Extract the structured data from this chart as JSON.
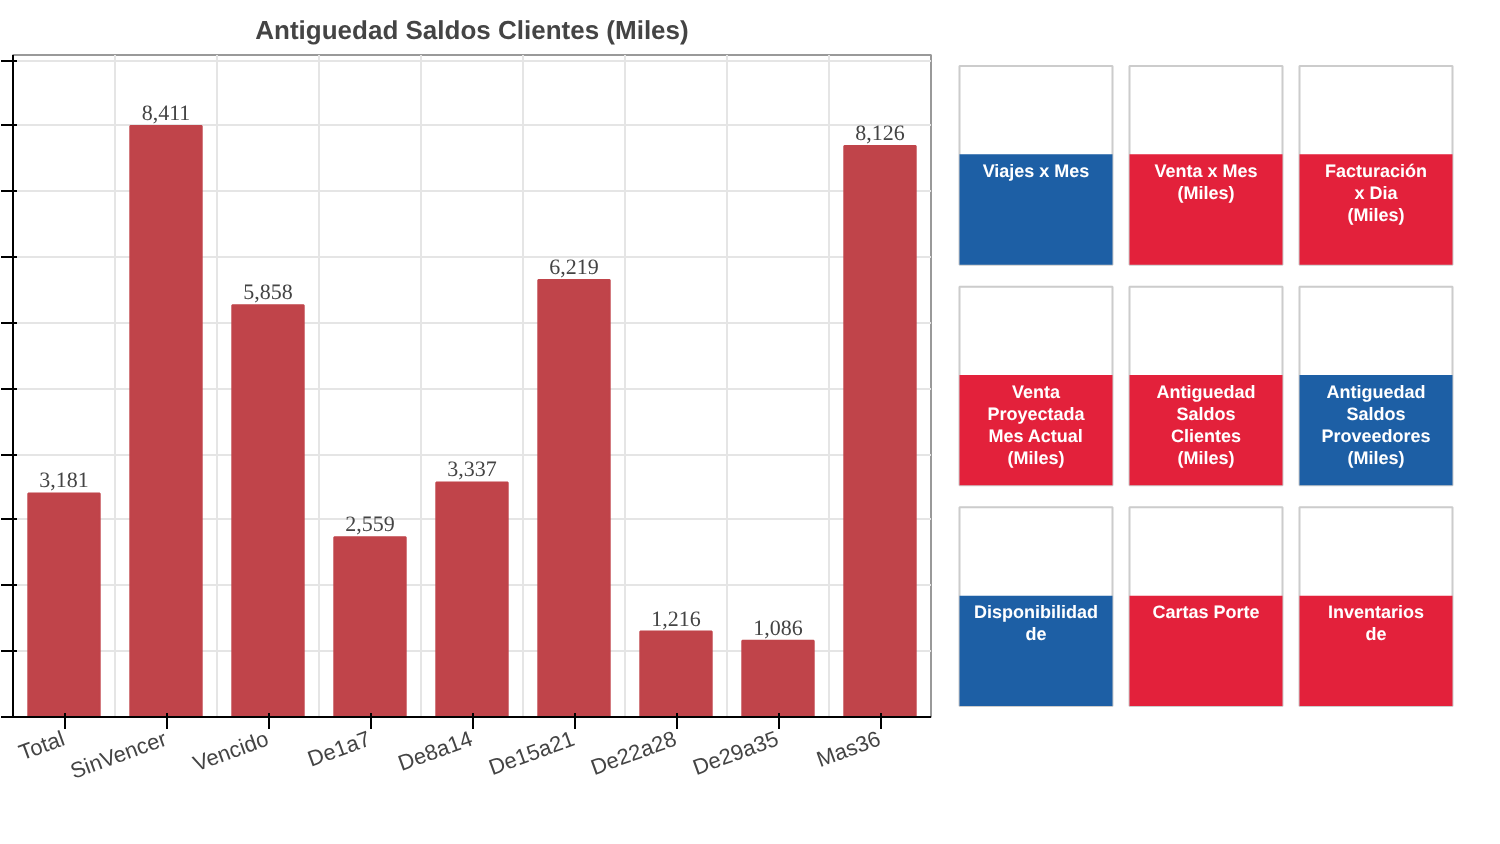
{
  "chart_data": [
    {
      "type": "bar",
      "title": "Antiguedad Saldos Clientes (Miles)",
      "categories": [
        "Total",
        "SinVencer",
        "Vencido",
        "De1a7",
        "De8a14",
        "De15a21",
        "De22a28",
        "De29a35",
        "Mas36"
      ],
      "values": [
        3181,
        8411,
        5858,
        2559,
        3337,
        6219,
        1216,
        1086,
        8126
      ],
      "color": "#c0444a",
      "value_labels": [
        "3,181",
        "8,411",
        "5,858",
        "2,559",
        "3,337",
        "6,219",
        "1,216",
        "1,086",
        "8,126"
      ],
      "grid": true,
      "tick_labels": "x"
    },
    {
      "type": "other",
      "annotations": [
        "Viajes x Mes",
        "Venta x Mes (Miles)",
        "Facturación x Dia (Miles)",
        "Venta Proyectada Mes Actual (Miles)",
        "Antiguedad Saldos Clientes (Miles)",
        "Antiguedad Saldos Proveedores (Miles)",
        "Disponibilidad de",
        "Cartas Porte",
        "Inventarios de"
      ]
    }
  ]
}
